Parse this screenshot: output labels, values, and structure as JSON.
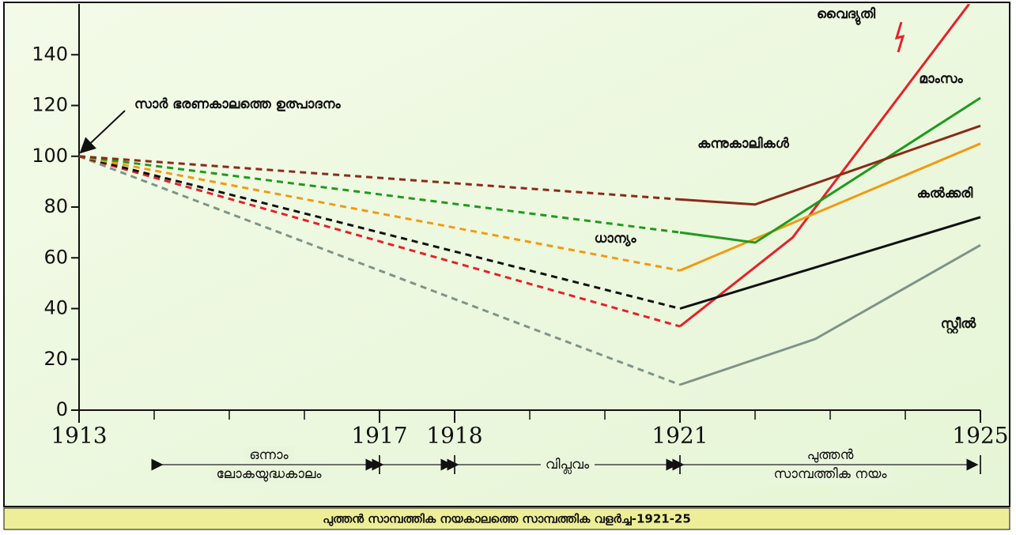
{
  "chart_data": {
    "type": "line",
    "caption": "പുത്തൻ സാമ്പത്തിക നയകാലത്തെ സാമ്പത്തിക വളർച്ച-1921-25",
    "annotation": "സാർ ഭരണകാലത്തെ ഉത്പാദനം",
    "xlim": [
      1913,
      1925
    ],
    "ylim": [
      0,
      160
    ],
    "xticks": [
      1913,
      1917,
      1918,
      1921,
      1925
    ],
    "xminor_ticks": [
      1914,
      1915,
      1916,
      1919,
      1920,
      1922,
      1923,
      1924
    ],
    "yticks": [
      0,
      20,
      40,
      60,
      80,
      100,
      120,
      140
    ],
    "dash_end_x": 1921,
    "periods": [
      {
        "label": [
          "ഒന്നാം",
          "ലോകയുദ്ധകാലം"
        ],
        "start": 1913,
        "end": 1917
      },
      {
        "label": null,
        "start": 1917,
        "end": 1918
      },
      {
        "label": [
          "വിപ്ലവം"
        ],
        "start": 1918,
        "end": 1921
      },
      {
        "label": [
          "പുത്തൻ",
          "സാമ്പത്തിക നയം"
        ],
        "start": 1921,
        "end": 1925
      }
    ],
    "series": [
      {
        "name": "സ്റ്റീൽ",
        "color": "#7f9488",
        "x": [
          1913,
          1921,
          1922.8,
          1925
        ],
        "values": [
          100,
          10,
          28,
          65
        ]
      },
      {
        "name": "വൈദ്യുതി",
        "color": "#e8202a",
        "x": [
          1913,
          1921,
          1922.5,
          1924.85
        ],
        "values": [
          100,
          33,
          68,
          160
        ]
      },
      {
        "name": "കൽക്കരി",
        "color": "#111111",
        "x": [
          1913,
          1921,
          1925
        ],
        "values": [
          100,
          40,
          76
        ]
      },
      {
        "name": "ധാന്യം",
        "color": "#f29a12",
        "x": [
          1913,
          1921,
          1925
        ],
        "values": [
          100,
          55,
          105
        ]
      },
      {
        "name": "മാംസം",
        "color": "#1f9a1f",
        "x": [
          1913,
          1921,
          1922,
          1925
        ],
        "values": [
          100,
          70,
          66,
          123
        ]
      },
      {
        "name": "കന്നുകാലികൾ",
        "color": "#8b2a1a",
        "x": [
          1913,
          1921,
          1922,
          1925
        ],
        "values": [
          100,
          83,
          81,
          112
        ]
      }
    ]
  }
}
